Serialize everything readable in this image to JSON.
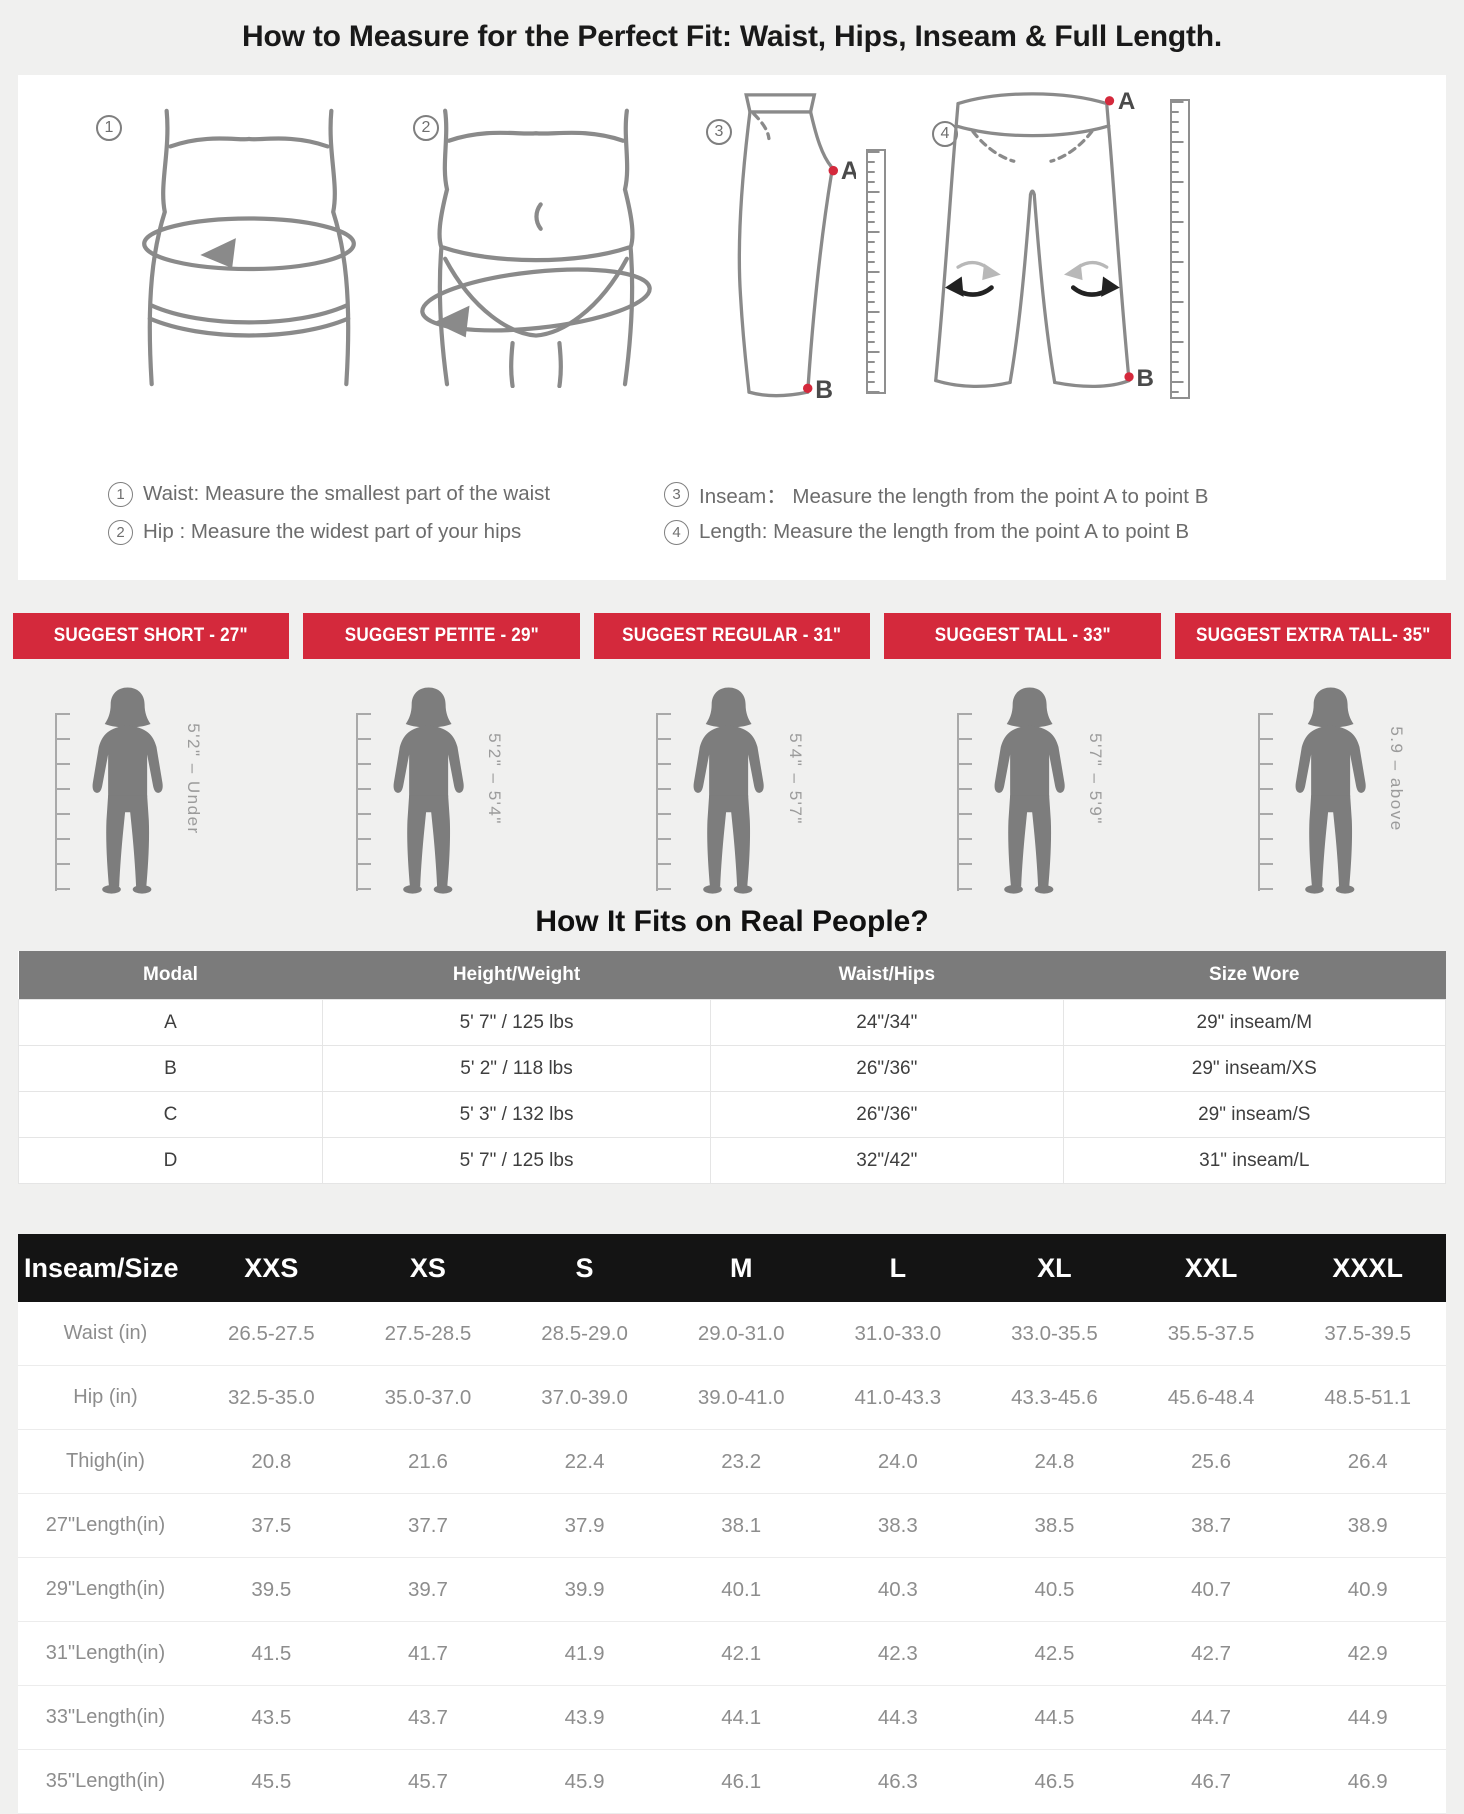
{
  "title": "How to Measure for the Perfect Fit: Waist, Hips, Inseam & Full Length.",
  "colors": {
    "accent_red": "#d4293c",
    "page_bg": "#f0f0ef",
    "panel_bg": "#ffffff",
    "line_gray": "#8a8a8a",
    "silhouette_gray": "#7d7d7d",
    "fit_header_bg": "#7b7b7b",
    "chart_header_bg": "#141414"
  },
  "measure_panel": {
    "instructions": [
      {
        "num": "1",
        "text": "Waist: Measure the smallest part of the waist"
      },
      {
        "num": "2",
        "text": "Hip : Measure the widest part of your hips"
      },
      {
        "num": "3",
        "text": "Inseam： Measure the length from the point A to point B"
      },
      {
        "num": "4",
        "text": "Length: Measure the length from the point A to point B"
      }
    ],
    "point_a": "A",
    "point_b": "B"
  },
  "height_guide": {
    "figures": [
      {
        "banner": "SUGGEST SHORT - 27\"",
        "range": "5'2\" – Under"
      },
      {
        "banner": "SUGGEST PETITE - 29\"",
        "range": "5'2\" – 5'4\""
      },
      {
        "banner": "SUGGEST REGULAR - 31\"",
        "range": "5'4\" – 5'7\""
      },
      {
        "banner": "SUGGEST TALL - 33\"",
        "range": "5'7\" – 5'9\""
      },
      {
        "banner": "SUGGEST EXTRA TALL- 35\"",
        "range": "5.9 – above"
      }
    ]
  },
  "fit_section": {
    "heading": "How It Fits on Real People?",
    "columns": [
      "Modal",
      "Height/Weight",
      "Waist/Hips",
      "Size Wore"
    ],
    "rows": [
      [
        "A",
        "5' 7\" / 125 lbs",
        "24\"/34\"",
        "29\" inseam/M"
      ],
      [
        "B",
        "5' 2\" / 118 lbs",
        "26\"/36\"",
        "29\" inseam/XS"
      ],
      [
        "C",
        "5' 3\" / 132 lbs",
        "26\"/36\"",
        "29\" inseam/S"
      ],
      [
        "D",
        "5' 7\" / 125 lbs",
        "32\"/42\"",
        "31\" inseam/L"
      ]
    ]
  },
  "size_chart": {
    "columns": [
      "Inseam/Size",
      "XXS",
      "XS",
      "S",
      "M",
      "L",
      "XL",
      "XXL",
      "XXXL"
    ],
    "rows": [
      {
        "label": "Waist (in)",
        "values": [
          "26.5-27.5",
          "27.5-28.5",
          "28.5-29.0",
          "29.0-31.0",
          "31.0-33.0",
          "33.0-35.5",
          "35.5-37.5",
          "37.5-39.5"
        ]
      },
      {
        "label": "Hip (in)",
        "values": [
          "32.5-35.0",
          "35.0-37.0",
          "37.0-39.0",
          "39.0-41.0",
          "41.0-43.3",
          "43.3-45.6",
          "45.6-48.4",
          "48.5-51.1"
        ]
      },
      {
        "label": "Thigh(in)",
        "values": [
          "20.8",
          "21.6",
          "22.4",
          "23.2",
          "24.0",
          "24.8",
          "25.6",
          "26.4"
        ]
      },
      {
        "label": "27\"Length(in)",
        "values": [
          "37.5",
          "37.7",
          "37.9",
          "38.1",
          "38.3",
          "38.5",
          "38.7",
          "38.9"
        ]
      },
      {
        "label": "29\"Length(in)",
        "values": [
          "39.5",
          "39.7",
          "39.9",
          "40.1",
          "40.3",
          "40.5",
          "40.7",
          "40.9"
        ]
      },
      {
        "label": "31\"Length(in)",
        "values": [
          "41.5",
          "41.7",
          "41.9",
          "42.1",
          "42.3",
          "42.5",
          "42.7",
          "42.9"
        ]
      },
      {
        "label": "33\"Length(in)",
        "values": [
          "43.5",
          "43.7",
          "43.9",
          "44.1",
          "44.3",
          "44.5",
          "44.7",
          "44.9"
        ]
      },
      {
        "label": "35\"Length(in)",
        "values": [
          "45.5",
          "45.7",
          "45.9",
          "46.1",
          "46.3",
          "46.5",
          "46.7",
          "46.9"
        ]
      }
    ]
  }
}
